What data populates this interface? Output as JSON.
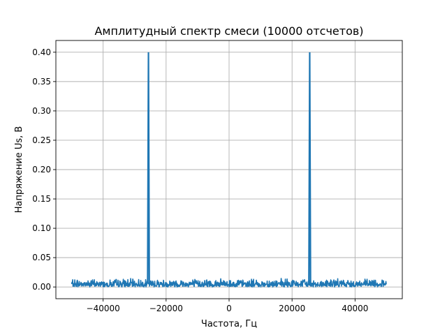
{
  "chart_data": {
    "type": "line",
    "title": "Амплитудный спектр смеси (10000 отсчетов)",
    "xlabel": "Частота, Гц",
    "ylabel": "Напряжение Us, В",
    "xlim": [
      -55000,
      55000
    ],
    "ylim": [
      -0.02,
      0.42
    ],
    "xticks": [
      -40000,
      -20000,
      0,
      20000,
      40000
    ],
    "xtick_labels": [
      "−40000",
      "−20000",
      "0",
      "20000",
      "40000"
    ],
    "yticks": [
      0.0,
      0.05,
      0.1,
      0.15,
      0.2,
      0.25,
      0.3,
      0.35,
      0.4
    ],
    "ytick_labels": [
      "0.00",
      "0.05",
      "0.10",
      "0.15",
      "0.20",
      "0.25",
      "0.30",
      "0.35",
      "0.40"
    ],
    "grid": true,
    "color": "#1f77b4",
    "series": [
      {
        "x_range": [
          -50000,
          50000
        ],
        "noise_floor": [
          0.0,
          0.015
        ],
        "peaks": [
          {
            "x": -25600,
            "y": 0.4
          },
          {
            "x": 25600,
            "y": 0.4
          }
        ]
      }
    ]
  }
}
